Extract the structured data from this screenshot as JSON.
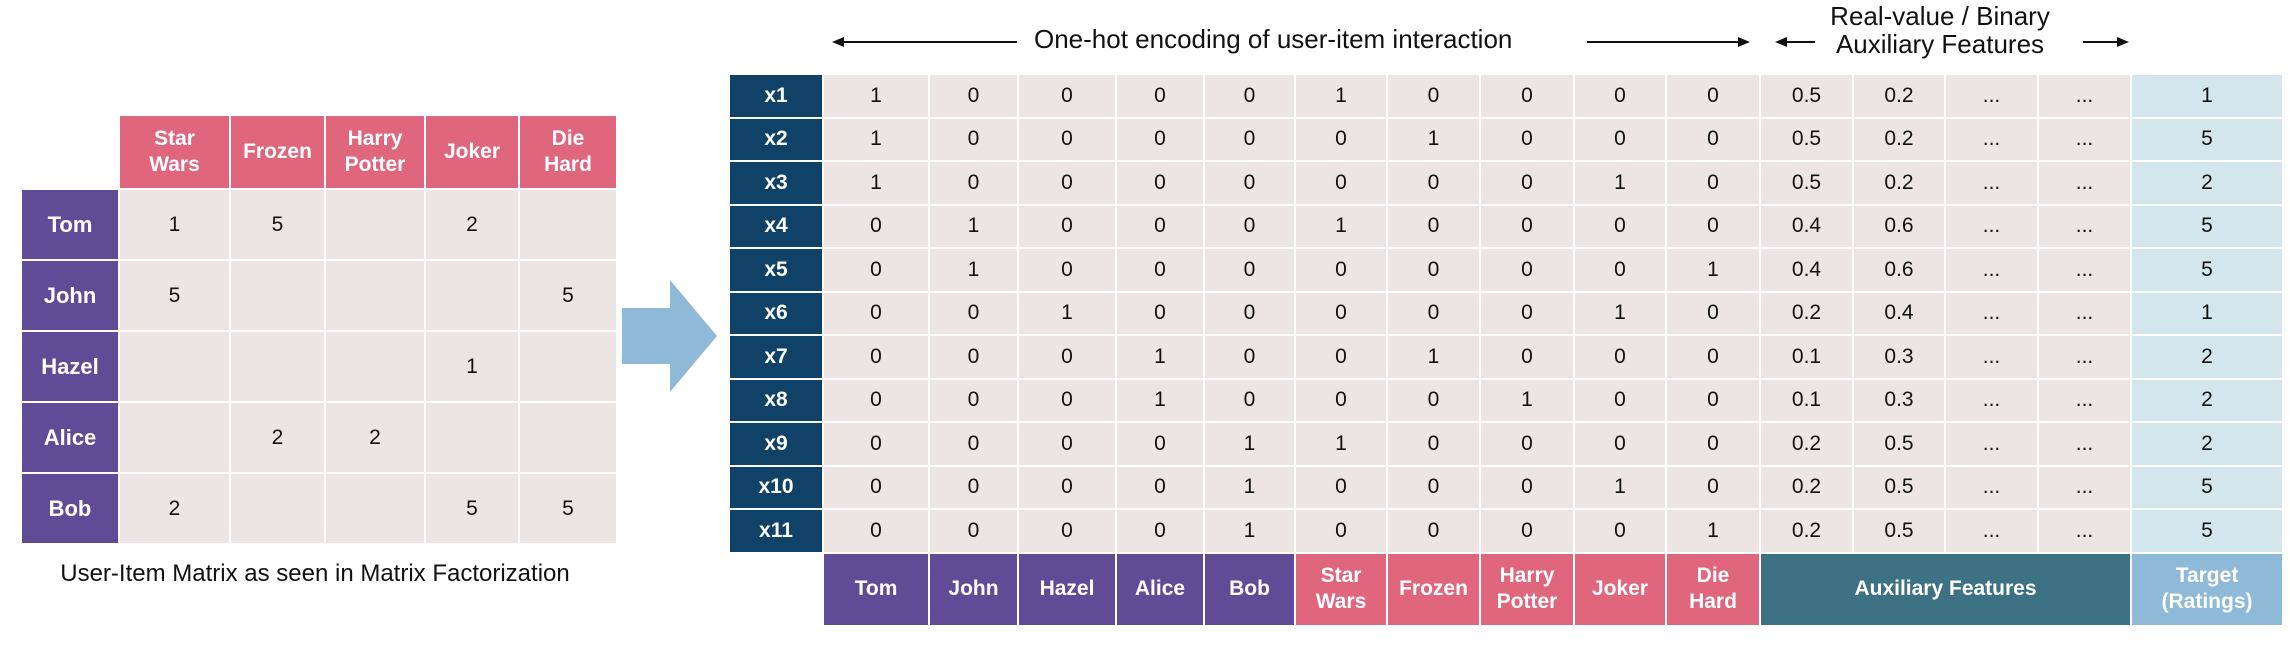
{
  "left_matrix": {
    "columns": [
      "Star Wars",
      "Frozen",
      "Harry Potter",
      "Joker",
      "Die Hard"
    ],
    "columns_lines": [
      [
        "Star",
        "Wars"
      ],
      [
        "Frozen"
      ],
      [
        "Harry",
        "Potter"
      ],
      [
        "Joker"
      ],
      [
        "Die",
        "Hard"
      ]
    ],
    "rows": [
      {
        "user": "Tom",
        "ratings": [
          "1",
          "5",
          "",
          "2",
          ""
        ]
      },
      {
        "user": "John",
        "ratings": [
          "5",
          "",
          "",
          "",
          "5"
        ]
      },
      {
        "user": "Hazel",
        "ratings": [
          "",
          "",
          "",
          "1",
          ""
        ]
      },
      {
        "user": "Alice",
        "ratings": [
          "",
          "2",
          "2",
          "",
          ""
        ]
      },
      {
        "user": "Bob",
        "ratings": [
          "2",
          "",
          "",
          "5",
          "5"
        ]
      }
    ],
    "caption": "User-Item Matrix as seen in Matrix Factorization",
    "colors": {
      "user_header": "#604c96",
      "item_header": "#e0667e",
      "cell": "#ede5e4"
    }
  },
  "transform_arrow": {
    "color": "#8fbad7"
  },
  "top_labels": {
    "one_hot": "One-hot encoding of user-item interaction",
    "aux_line1": "Real-value / Binary",
    "aux_line2": "Auxiliary Features"
  },
  "main_table": {
    "rows": [
      {
        "id": "x1",
        "values": [
          "1",
          "0",
          "0",
          "0",
          "0",
          "1",
          "0",
          "0",
          "0",
          "0",
          "0.5",
          "0.2",
          "...",
          "..."
        ],
        "target": "1"
      },
      {
        "id": "x2",
        "values": [
          "1",
          "0",
          "0",
          "0",
          "0",
          "0",
          "1",
          "0",
          "0",
          "0",
          "0.5",
          "0.2",
          "...",
          "..."
        ],
        "target": "5"
      },
      {
        "id": "x3",
        "values": [
          "1",
          "0",
          "0",
          "0",
          "0",
          "0",
          "0",
          "0",
          "1",
          "0",
          "0.5",
          "0.2",
          "...",
          "..."
        ],
        "target": "2"
      },
      {
        "id": "x4",
        "values": [
          "0",
          "1",
          "0",
          "0",
          "0",
          "1",
          "0",
          "0",
          "0",
          "0",
          "0.4",
          "0.6",
          "...",
          "..."
        ],
        "target": "5"
      },
      {
        "id": "x5",
        "values": [
          "0",
          "1",
          "0",
          "0",
          "0",
          "0",
          "0",
          "0",
          "0",
          "1",
          "0.4",
          "0.6",
          "...",
          "..."
        ],
        "target": "5"
      },
      {
        "id": "x6",
        "values": [
          "0",
          "0",
          "1",
          "0",
          "0",
          "0",
          "0",
          "0",
          "1",
          "0",
          "0.2",
          "0.4",
          "...",
          "..."
        ],
        "target": "1"
      },
      {
        "id": "x7",
        "values": [
          "0",
          "0",
          "0",
          "1",
          "0",
          "0",
          "1",
          "0",
          "0",
          "0",
          "0.1",
          "0.3",
          "...",
          "..."
        ],
        "target": "2"
      },
      {
        "id": "x8",
        "values": [
          "0",
          "0",
          "0",
          "1",
          "0",
          "0",
          "0",
          "1",
          "0",
          "0",
          "0.1",
          "0.3",
          "...",
          "..."
        ],
        "target": "2"
      },
      {
        "id": "x9",
        "values": [
          "0",
          "0",
          "0",
          "0",
          "1",
          "1",
          "0",
          "0",
          "0",
          "0",
          "0.2",
          "0.5",
          "...",
          "..."
        ],
        "target": "2"
      },
      {
        "id": "x10",
        "values": [
          "0",
          "0",
          "0",
          "0",
          "1",
          "0",
          "0",
          "0",
          "1",
          "0",
          "0.2",
          "0.5",
          "...",
          "..."
        ],
        "target": "5"
      },
      {
        "id": "x11",
        "values": [
          "0",
          "0",
          "0",
          "0",
          "1",
          "0",
          "0",
          "0",
          "0",
          "1",
          "0.2",
          "0.5",
          "...",
          "..."
        ],
        "target": "5"
      }
    ],
    "footer": {
      "users": [
        "Tom",
        "John",
        "Hazel",
        "Alice",
        "Bob"
      ],
      "items": [
        [
          "Star",
          "Wars"
        ],
        [
          "Frozen"
        ],
        [
          "Harry",
          "Potter"
        ],
        [
          "Joker"
        ],
        [
          "Die",
          "Hard"
        ]
      ],
      "aux_label": "Auxiliary Features",
      "target_line1": "Target",
      "target_line2": "(Ratings)"
    },
    "colors": {
      "row_header": "#0f4266",
      "cell": "#ede5e4",
      "target_cell": "#d3e6ee",
      "user_header": "#604c96",
      "item_header": "#e0667e",
      "aux_header": "#3d7284",
      "target_header": "#8fbad7"
    }
  }
}
